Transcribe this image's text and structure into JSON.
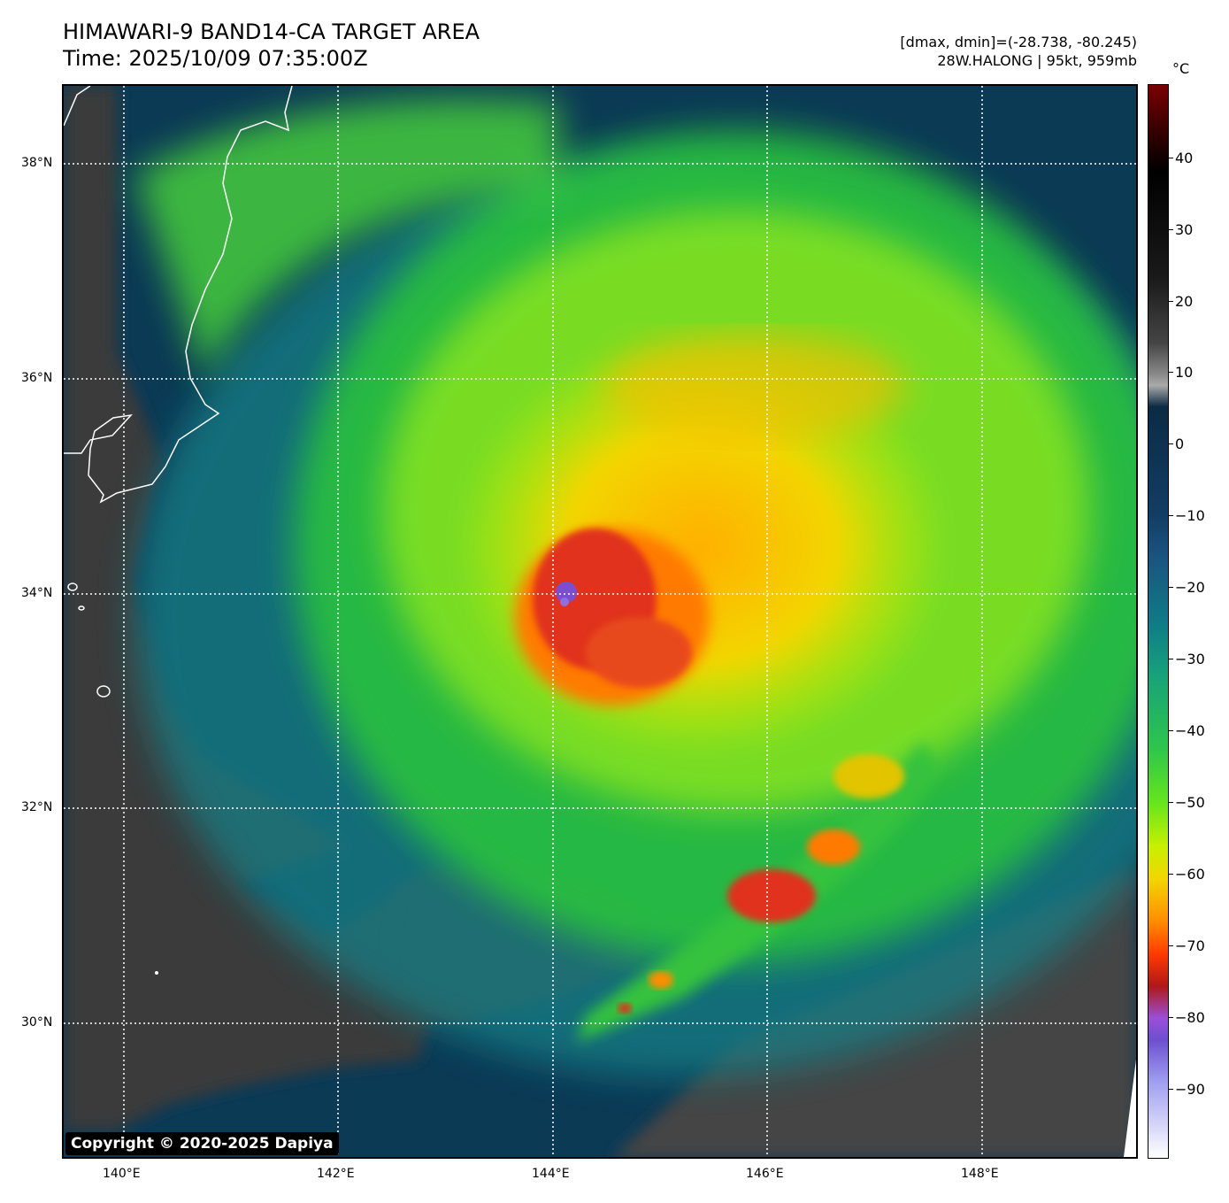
{
  "title": {
    "line1": "HIMAWARI-9 BAND14-CA TARGET AREA",
    "line2": "Time: 2025/10/09 07:35:00Z"
  },
  "info": {
    "line1": "[dmax, dmin]=(-28.738, -80.245)",
    "line2": "28W.HALONG | 95kt, 959mb"
  },
  "copyright": "Copyright © 2020-2025 Dapiya",
  "lat_ticks": [
    "38°N",
    "36°N",
    "34°N",
    "32°N",
    "30°N"
  ],
  "lon_ticks": [
    "140°E",
    "142°E",
    "144°E",
    "146°E",
    "148°E"
  ],
  "colorbar": {
    "unit": "°C",
    "ticks": [
      "40",
      "30",
      "20",
      "10",
      "0",
      "−10",
      "−20",
      "−30",
      "−40",
      "−50",
      "−60",
      "−70",
      "−80",
      "−90"
    ]
  },
  "colors": {
    "background_sea": "#0b3a55",
    "cold_top_red": "#e0331a",
    "eye_purple": "#7a4fcf",
    "grid": "#ffffff",
    "coastline": "#ffffff"
  }
}
